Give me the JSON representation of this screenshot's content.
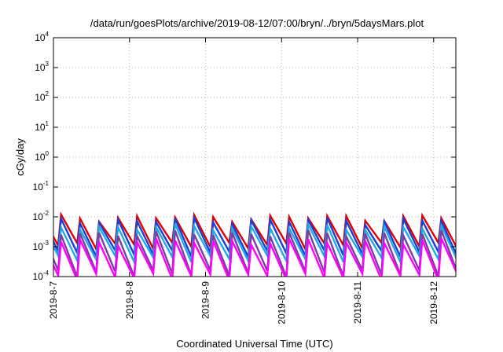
{
  "chart_data": {
    "type": "line",
    "title": "/data/run/goesPlots/archive/2019-08-12/07:00/bryn/../bryn/5daysMars.plot",
    "xlabel": "Coordinated Universal Time (UTC)",
    "ylabel": "cGy/day",
    "y_scale": "log",
    "ylim": [
      0.0001,
      10000
    ],
    "xlim": [
      "2019-08-07 00:00",
      "2019-08-12 07:00"
    ],
    "x_ticks": [
      "2019-8-7",
      "2019-8-8",
      "2019-8-9",
      "2019-8-10",
      "2019-8-11",
      "2019-8-12"
    ],
    "y_ticks": [
      {
        "base": "10",
        "exp": "4"
      },
      {
        "base": "10",
        "exp": "3"
      },
      {
        "base": "10",
        "exp": "2"
      },
      {
        "base": "10",
        "exp": "1"
      },
      {
        "base": "10",
        "exp": "0"
      },
      {
        "base": "10",
        "exp": "-1"
      },
      {
        "base": "10",
        "exp": "-2"
      },
      {
        "base": "10",
        "exp": "-3"
      },
      {
        "base": "10",
        "exp": "-4"
      }
    ],
    "grid": true,
    "legend": "none",
    "sawtooth_period_hours": 6,
    "series": [
      {
        "color": "#e00000",
        "peak": 0.0095,
        "trough": 0.0011
      },
      {
        "color": "#1a3fd6",
        "peak": 0.0075,
        "trough": 0.0006
      },
      {
        "color": "#22a8e6",
        "peak": 0.0045,
        "trough": 0.0004
      },
      {
        "color": "#7b3fa0",
        "peak": 0.0028,
        "trough": 0.00013
      },
      {
        "color": "#ff00ff",
        "peak": 0.0015,
        "trough": 0.0001
      }
    ]
  }
}
